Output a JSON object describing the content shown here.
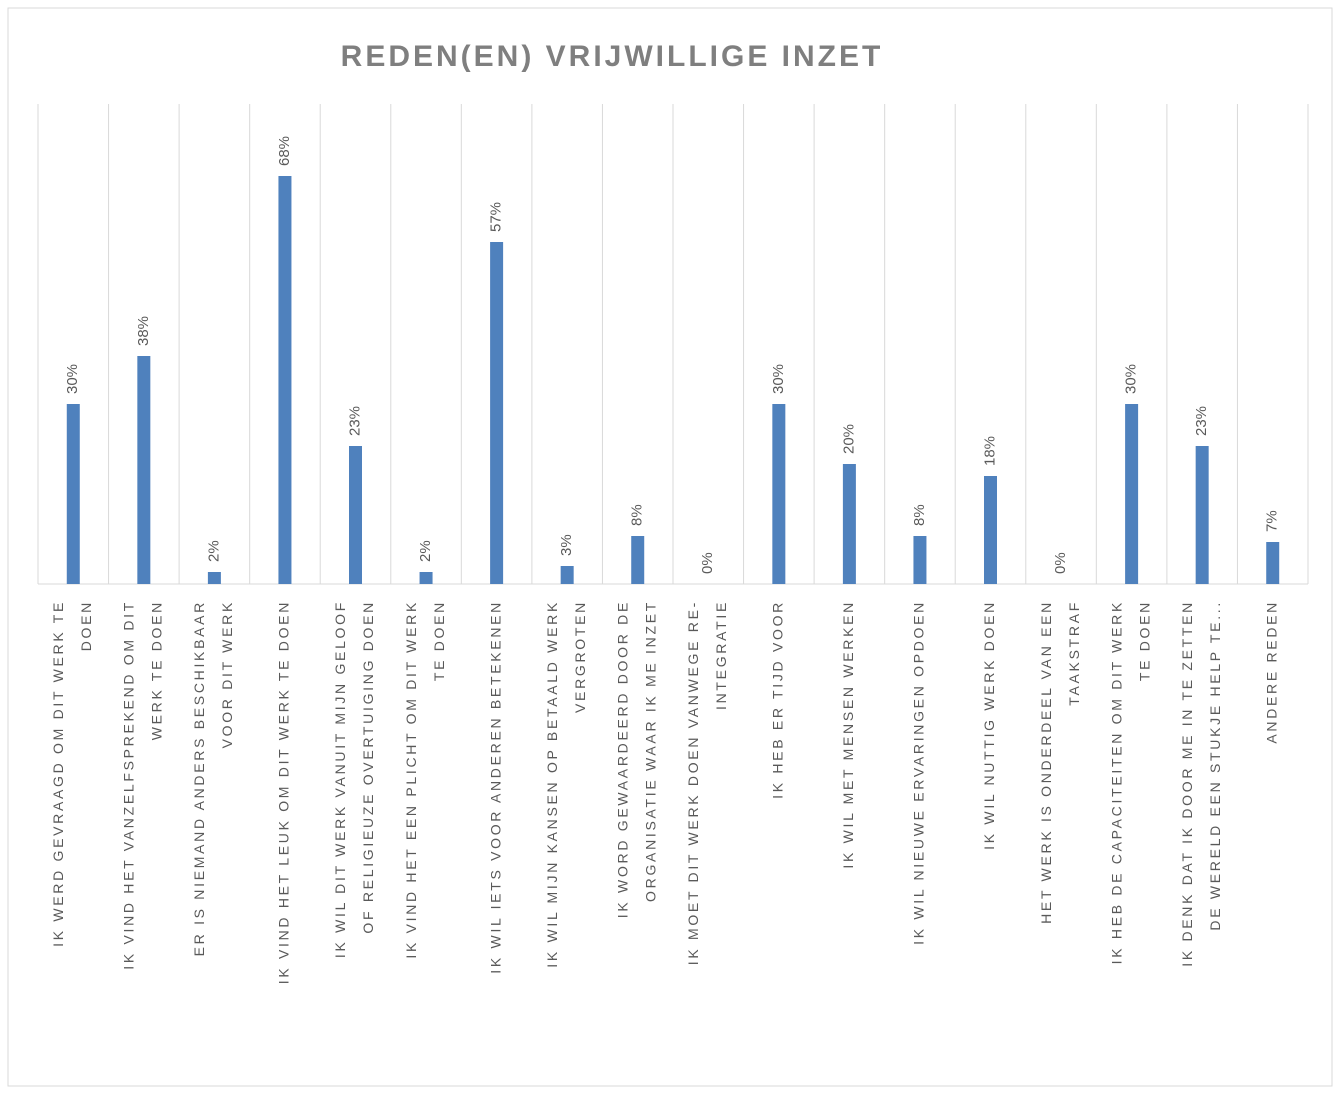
{
  "chart_data": {
    "type": "bar",
    "title": "REDEN(EN) VRIJWILLIGE INZET",
    "categories": [
      [
        "IK WERD GEVRAAGD OM DIT WERK TE",
        "DOEN"
      ],
      [
        "IK VIND HET VANZELFSPREKEND OM DIT",
        "WERK TE DOEN"
      ],
      [
        "ER IS NIEMAND ANDERS BESCHIKBAAR",
        "VOOR DIT WERK"
      ],
      [
        "IK VIND HET LEUK OM DIT WERK TE DOEN"
      ],
      [
        "IK WIL DIT WERK VANUIT MIJN GELOOF",
        "OF RELIGIEUZE OVERTUIGING DOEN"
      ],
      [
        "IK VIND HET EEN PLICHT OM DIT WERK",
        "TE DOEN"
      ],
      [
        "IK WIL IETS VOOR ANDEREN BETEKENEN"
      ],
      [
        "IK WIL MIJN KANSEN OP BETAALD WERK",
        "VERGROTEN"
      ],
      [
        "IK WORD GEWAARDEERD DOOR DE",
        "ORGANISATIE WAAR IK ME INZET"
      ],
      [
        "IK MOET DIT WERK DOEN VANWEGE RE-",
        "INTEGRATIE"
      ],
      [
        "IK HEB ER TIJD VOOR"
      ],
      [
        "IK WIL MET MENSEN WERKEN"
      ],
      [
        "IK WIL NIEUWE ERVARINGEN OPDOEN"
      ],
      [
        "IK WIL NUTTIG WERK DOEN"
      ],
      [
        "HET WERK IS ONDERDEEL VAN EEN",
        "TAAKSTRAF"
      ],
      [
        "IK HEB DE CAPACITEITEN OM DIT WERK",
        "TE DOEN"
      ],
      [
        "IK DENK DAT IK DOOR ME IN TE ZETTEN",
        "DE WERELD EEN STUKJE HELP TE..."
      ],
      [
        "ANDERE REDEN"
      ]
    ],
    "values": [
      30,
      38,
      2,
      68,
      23,
      2,
      57,
      3,
      8,
      0,
      30,
      20,
      8,
      18,
      0,
      30,
      23,
      7
    ],
    "value_labels": [
      "30%",
      "38%",
      "2%",
      "68%",
      "23%",
      "2%",
      "57%",
      "3%",
      "8%",
      "0%",
      "30%",
      "20%",
      "8%",
      "18%",
      "0%",
      "30%",
      "23%",
      "7%"
    ],
    "color": "#4f81bd",
    "ylim": [
      0,
      80
    ],
    "grid": true
  }
}
